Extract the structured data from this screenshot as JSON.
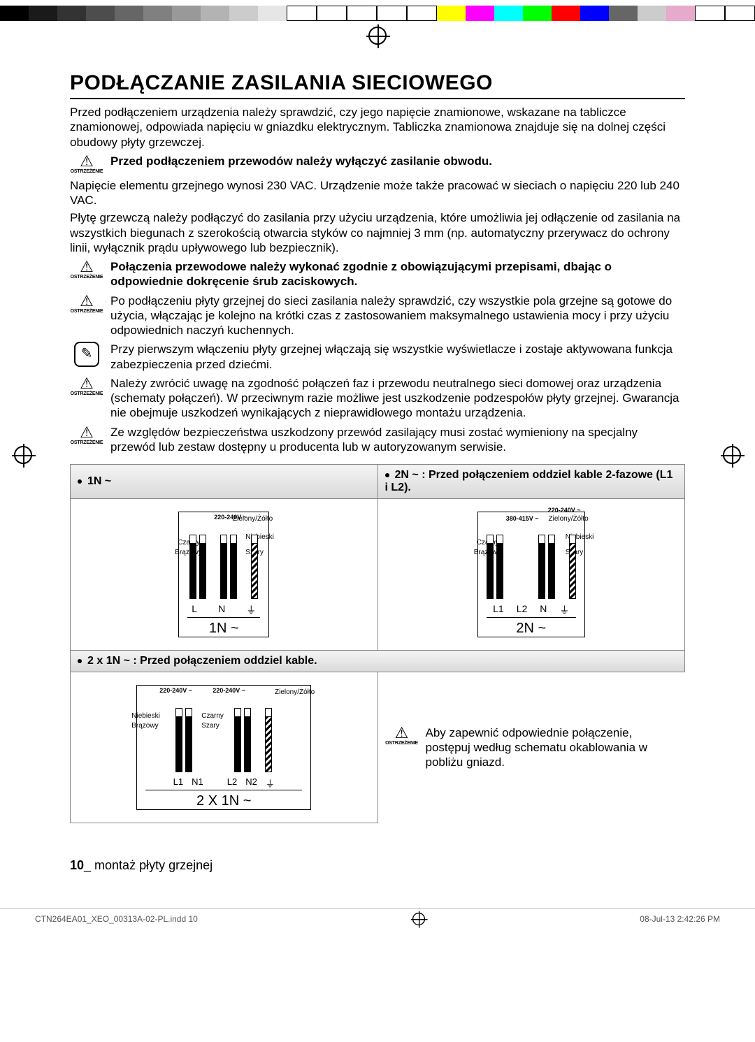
{
  "calibration_colors": [
    "#000000",
    "#1a1a1a",
    "#333333",
    "#4d4d4d",
    "#666666",
    "#808080",
    "#999999",
    "#b3b3b3",
    "#cccccc",
    "#e6e6e6",
    "#ffffff",
    "#ffffff",
    "#ffffff",
    "#ffffff",
    "#ffffff",
    "#ffff00",
    "#ff00ff",
    "#00ffff",
    "#00ff00",
    "#ff0000",
    "#0000ff",
    "#666666",
    "#cccccc",
    "#e6aacc",
    "#ffffff",
    "#ffffff"
  ],
  "heading": "PODŁĄCZANIE ZASILANIA SIECIOWEGO",
  "intro": "Przed podłączeniem urządzenia należy sprawdzić, czy jego napięcie znamionowe, wskazane na tabliczce znamionowej, odpowiada napięciu w gniazdku elektrycznym. Tabliczka znamionowa znajduje się na dolnej części obudowy płyty grzewczej.",
  "warn_label": "OSTRZEŻENIE",
  "warn1": "Przed podłączeniem przewodów należy wyłączyć zasilanie obwodu.",
  "para2": "Napięcie elementu grzejnego wynosi 230 VAC. Urządzenie może także pracować w sieciach o napięciu 220 lub 240 VAC.",
  "para3": "Płytę grzewczą należy podłączyć do zasilania przy użyciu urządzenia, które umożliwia jej odłączenie od zasilania na wszystkich biegunach z szerokością otwarcia styków co najmniej 3 mm (np. automatyczny przerywacz do ochrony linii, wyłącznik prądu upływowego lub bezpiecznik).",
  "warn2": "Połączenia przewodowe należy wykonać zgodnie z obowiązującymi przepisami, dbając o odpowiednie dokręcenie śrub zaciskowych.",
  "warn3": "Po podłączeniu płyty grzejnej do sieci zasilania należy sprawdzić, czy wszystkie pola grzejne są gotowe do użycia, włączając je kolejno na krótki czas z zastosowaniem maksymalnego ustawienia mocy i przy użyciu odpowiednich naczyń kuchennych.",
  "info1": "Przy pierwszym włączeniu płyty grzejnej włączają się wszystkie wyświetlacze i zostaje aktywowana funkcja zabezpieczenia przed dziećmi.",
  "warn4": "Należy zwrócić uwagę na zgodność połączeń faz i przewodu neutralnego sieci domowej oraz urządzenia (schematy połączeń). W przeciwnym razie możliwe jest uszkodzenie podzespołów płyty grzejnej. Gwarancja nie obejmuje uszkodzeń wynikających z nieprawidłowego montażu urządzenia.",
  "warn5": "Ze względów bezpieczeństwa uszkodzony przewód zasilający musi zostać wymieniony na specjalny przewód lub zestaw dostępny u producenta lub w autoryzowanym serwisie.",
  "conn": {
    "h1": "1N ~",
    "h2": "2N ~ : Przed połączeniem oddziel kable 2-fazowe (L1 i L2).",
    "h3": "2 x 1N ~ : Przed połączeniem oddziel kable.",
    "d1": {
      "voltage": "220-240V ~",
      "colors": {
        "c1": "Czarny",
        "c2": "Brązowy",
        "c3": "Niebieski",
        "c4": "Szary",
        "gnd": "Zielony/Żółto"
      },
      "terms": [
        "L",
        "N",
        "⏚"
      ],
      "caption": "1N ~"
    },
    "d2": {
      "voltage1": "220-240V ~",
      "voltage2": "380-415V ~",
      "colors": {
        "c1": "Czarny",
        "c2": "Brązowy",
        "c3": "Niebieski",
        "c4": "Szary",
        "gnd": "Zielony/Żółto"
      },
      "terms": [
        "L1",
        "L2",
        "N",
        "⏚"
      ],
      "caption": "2N ~"
    },
    "d3": {
      "voltage1": "220-240V ~",
      "voltage2": "220-240V ~",
      "colors": {
        "c1": "Niebieski",
        "c2": "Brązowy",
        "c3": "Czarny",
        "c4": "Szary",
        "gnd": "Zielony/Żółto"
      },
      "terms": [
        "L1",
        "N1",
        "L2",
        "N2",
        "⏚"
      ],
      "caption": "2 X 1N ~"
    },
    "note": "Aby zapewnić odpowiednie połączenie, postępuj według schematu okablowania w pobliżu gniazd."
  },
  "footer": {
    "page": "10",
    "section": "_ montaż płyty grzejnej"
  },
  "print": {
    "file": "CTN264EA01_XEO_00313A-02-PL.indd   10",
    "date": "08-Jul-13   2:42:26 PM"
  }
}
